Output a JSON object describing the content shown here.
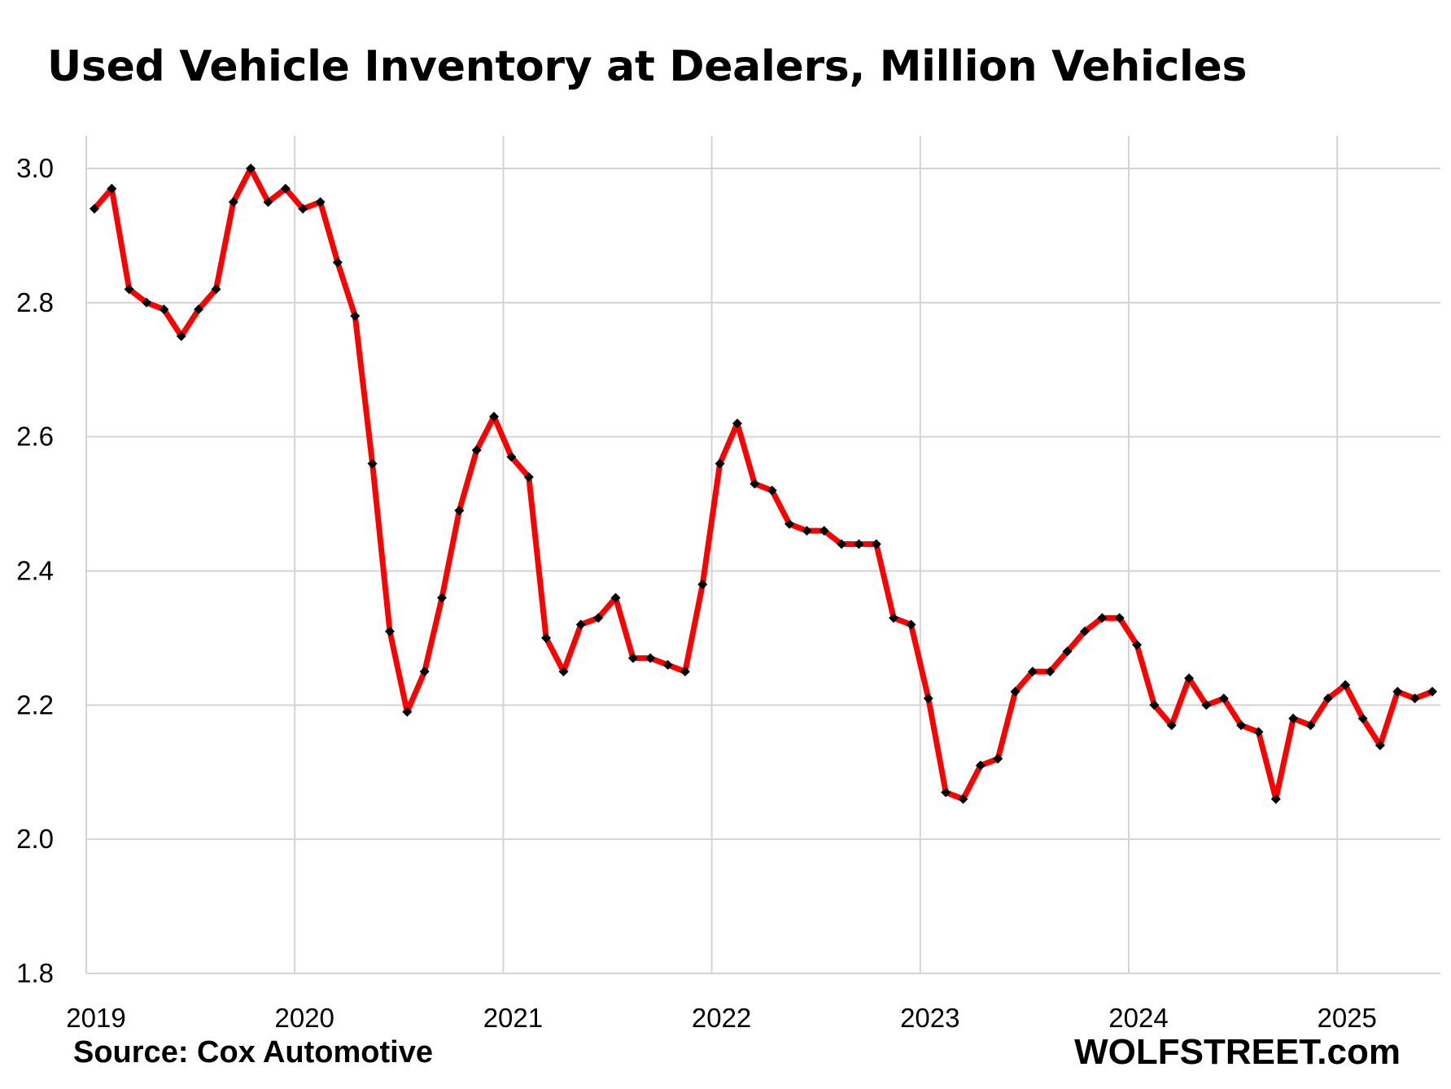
{
  "chart_data": {
    "type": "line",
    "title": "Used Vehicle Inventory at Dealers, Million Vehicles",
    "xlabel": "",
    "ylabel": "",
    "ylim": [
      1.8,
      3.0
    ],
    "yticks": [
      "1.8",
      "2.0",
      "2.2",
      "2.4",
      "2.6",
      "2.8",
      "3.0"
    ],
    "xticks": [
      "2019",
      "2020",
      "2021",
      "2022",
      "2023",
      "2024",
      "2025"
    ],
    "grid": true,
    "legend": "none",
    "x_start": "2019-01",
    "frequency": "monthly",
    "series": [
      {
        "color": "#ff0000",
        "marker_color": "#000000",
        "values": [
          2.94,
          2.97,
          2.82,
          2.8,
          2.79,
          2.75,
          2.79,
          2.82,
          2.95,
          3.0,
          2.95,
          2.97,
          2.94,
          2.95,
          2.86,
          2.78,
          2.56,
          2.31,
          2.19,
          2.25,
          2.36,
          2.49,
          2.58,
          2.63,
          2.57,
          2.54,
          2.3,
          2.25,
          2.32,
          2.33,
          2.36,
          2.27,
          2.27,
          2.26,
          2.25,
          2.38,
          2.56,
          2.62,
          2.53,
          2.52,
          2.47,
          2.46,
          2.46,
          2.44,
          2.44,
          2.44,
          2.33,
          2.32,
          2.21,
          2.07,
          2.06,
          2.11,
          2.12,
          2.22,
          2.25,
          2.25,
          2.28,
          2.31,
          2.33,
          2.33,
          2.29,
          2.2,
          2.17,
          2.24,
          2.2,
          2.21,
          2.17,
          2.16,
          2.06,
          2.18,
          2.17,
          2.21,
          2.23,
          2.18,
          2.14,
          2.22,
          2.21,
          2.22
        ]
      }
    ]
  },
  "footer": {
    "source": "Source: Cox Automotive",
    "brand": "WOLFSTREET.com"
  }
}
